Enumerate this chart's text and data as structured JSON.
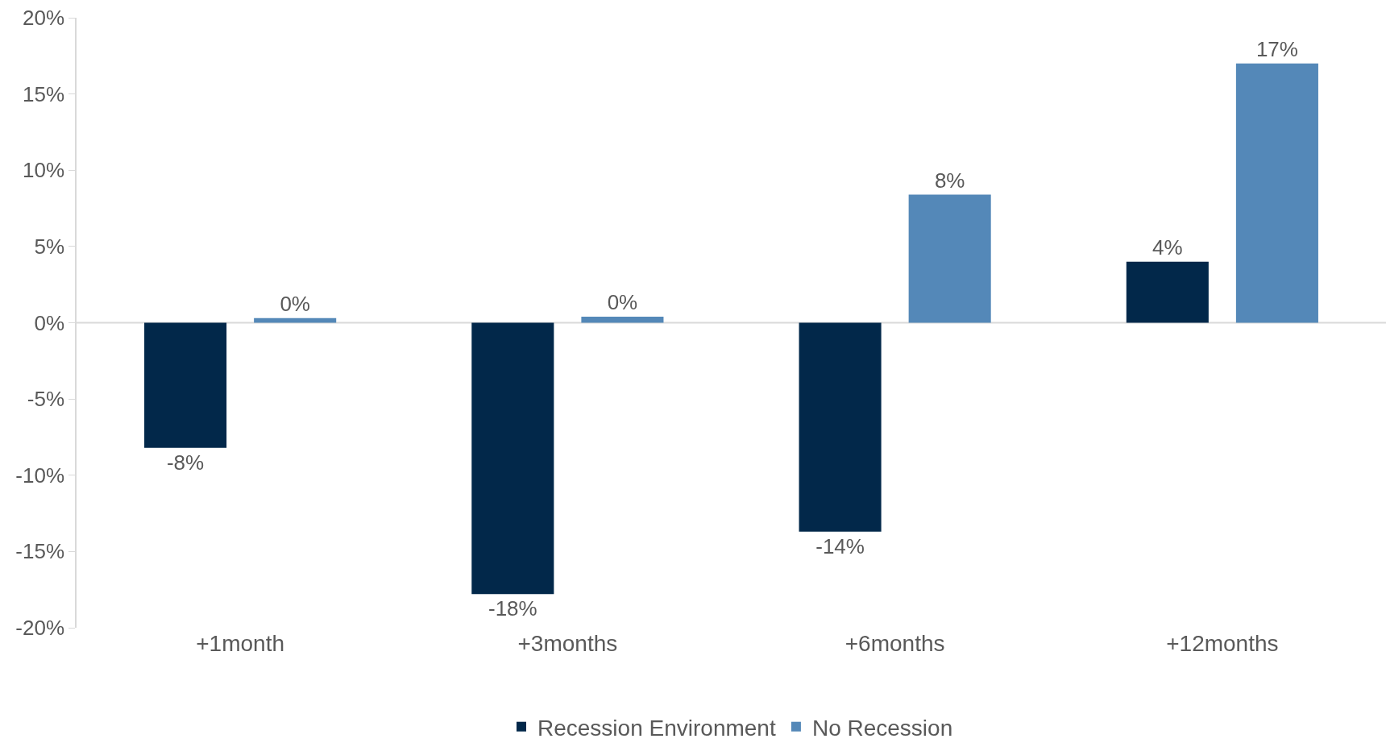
{
  "chart_data": {
    "type": "bar",
    "categories": [
      "+1month",
      "+3months",
      "+6months",
      "+12months"
    ],
    "series": [
      {
        "name": "Recession Environment",
        "color": "#02284a",
        "values": [
          -8.2,
          -17.8,
          -13.7,
          4.0
        ],
        "value_labels": [
          "-8%",
          "-18%",
          "-14%",
          "4%"
        ]
      },
      {
        "name": "No Recession",
        "color": "#5488b8",
        "values": [
          0.3,
          0.4,
          8.4,
          17.0
        ],
        "value_labels": [
          "0%",
          "0%",
          "8%",
          "17%"
        ]
      }
    ],
    "ylim": [
      -20,
      20
    ],
    "yticks": [
      {
        "value": -20,
        "label": "-20%"
      },
      {
        "value": -15,
        "label": "-15%"
      },
      {
        "value": -10,
        "label": "-10%"
      },
      {
        "value": -5,
        "label": "-5%"
      },
      {
        "value": 0,
        "label": "0%"
      },
      {
        "value": 5,
        "label": "5%"
      },
      {
        "value": 10,
        "label": "10%"
      },
      {
        "value": 15,
        "label": "15%"
      },
      {
        "value": 20,
        "label": "20%"
      }
    ],
    "ref_lines": [
      {
        "axis": "y",
        "value": 0,
        "color": "#d9d9d9"
      }
    ],
    "legend": "bottom"
  }
}
